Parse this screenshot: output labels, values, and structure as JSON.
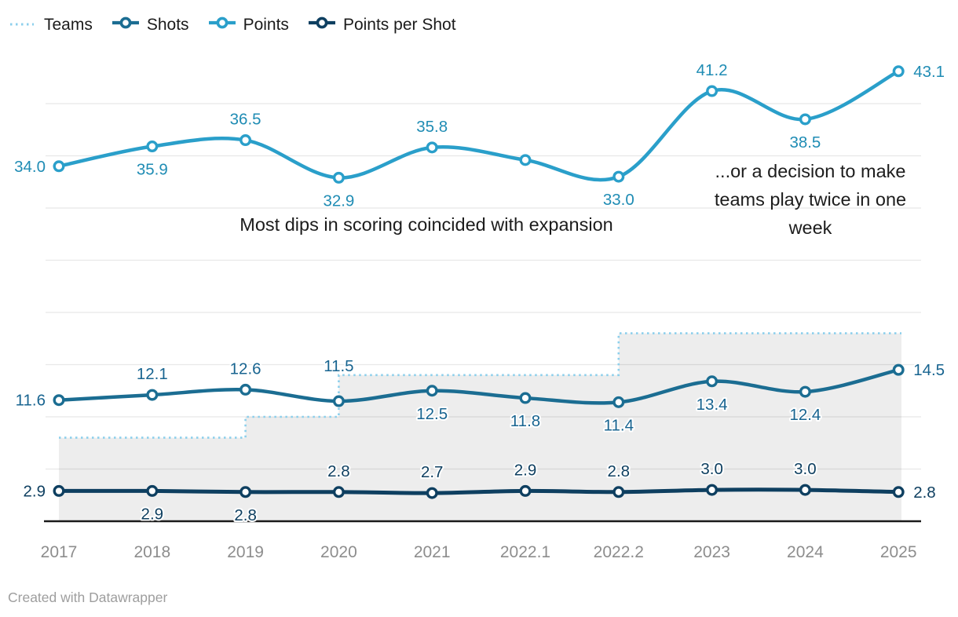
{
  "legend": {
    "items": [
      {
        "label": "Teams",
        "swatch": "dotted",
        "color": "#8ccfec"
      },
      {
        "label": "Shots",
        "swatch": "line-marker",
        "color": "#1b6d92"
      },
      {
        "label": "Points",
        "swatch": "line-marker",
        "color": "#2a9fca"
      },
      {
        "label": "Points per Shot",
        "swatch": "line-marker",
        "color": "#0e3f60"
      }
    ]
  },
  "annotations": [
    {
      "text": "Most dips in scoring coincided with expansion"
    },
    {
      "text": "...or a decision to make teams play twice in one week"
    }
  ],
  "footer": {
    "credit": "Created with Datawrapper"
  },
  "colors": {
    "grid": "#e8e8e8",
    "axis": "#1a1a1a",
    "axis_labels": "#8d8d8d",
    "expansion_area": "rgba(20,20,20,0.075)"
  },
  "chart_data": {
    "type": "line",
    "categories": [
      "2017",
      "2018",
      "2019",
      "2020",
      "2021",
      "2022.1",
      "2022.2",
      "2023",
      "2024",
      "2025"
    ],
    "ylim": [
      0,
      45
    ],
    "grid_interval": 5,
    "grid": "horizontal",
    "legend_position": "top-left",
    "series": [
      {
        "name": "Teams",
        "render": "step-area",
        "color": "#8ccfec",
        "values": [
          8,
          8,
          10,
          14,
          14,
          14,
          18,
          18,
          18,
          18
        ],
        "show_labels": false
      },
      {
        "name": "Shots",
        "render": "smooth",
        "color": "#1b6d92",
        "label_color": "#186490",
        "values": [
          11.6,
          12.1,
          12.6,
          11.5,
          12.5,
          11.8,
          11.4,
          13.4,
          12.4,
          14.5
        ],
        "labels": [
          "11.6",
          "12.1",
          "12.6",
          "11.5",
          "12.5",
          "11.8",
          "11.4",
          "13.4",
          "12.4",
          "14.5"
        ],
        "label_positions": [
          "left",
          "above",
          "above",
          "above",
          "below",
          "below",
          "below",
          "below",
          "below",
          "right"
        ],
        "label_dy": {
          "3": -18
        }
      },
      {
        "name": "Points",
        "render": "smooth",
        "color": "#2a9fca",
        "label_color": "#1f8cb4",
        "values": [
          34.0,
          35.9,
          36.5,
          32.9,
          35.8,
          34.6,
          33.0,
          41.2,
          38.5,
          43.1
        ],
        "labels": [
          "34.0",
          "35.9",
          "36.5",
          "32.9",
          "35.8",
          "",
          "33.0",
          "41.2",
          "38.5",
          "43.1"
        ],
        "label_positions": [
          "left",
          "below",
          "above",
          "below",
          "above",
          "none",
          "below",
          "above",
          "below",
          "right"
        ]
      },
      {
        "name": "Points per Shot",
        "render": "smooth",
        "color": "#0e3f60",
        "label_color": "#0e3f60",
        "values": [
          2.9,
          2.9,
          2.8,
          2.8,
          2.7,
          2.9,
          2.8,
          3.0,
          3.0,
          2.8
        ],
        "labels": [
          "2.9",
          "2.9",
          "2.8",
          "2.8",
          "2.7",
          "2.9",
          "2.8",
          "3.0",
          "3.0",
          "2.8"
        ],
        "label_positions": [
          "left",
          "below",
          "below",
          "above",
          "above",
          "above",
          "above",
          "above",
          "above",
          "right"
        ]
      }
    ]
  }
}
